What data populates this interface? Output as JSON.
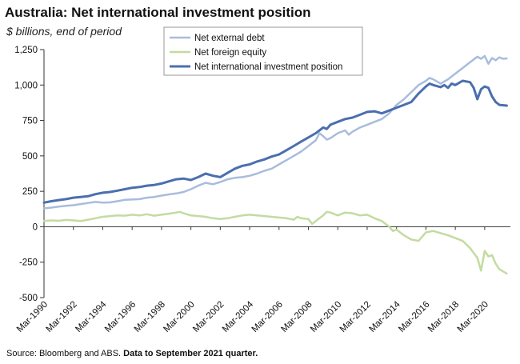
{
  "chart_data": {
    "type": "line",
    "title": "Australia: Net international investment position",
    "subtitle": "$ billions, end of period",
    "source_prefix": "Source: Bloomberg and ABS. ",
    "source_bold": "Data to September 2021 quarter.",
    "ylim": [
      -500,
      1250
    ],
    "yticks": [
      -500,
      -250,
      0,
      250,
      500,
      750,
      1000,
      1250
    ],
    "ytick_labels": [
      "-500",
      "-250",
      "0",
      "250",
      "500",
      "750",
      "1,000",
      "1,250"
    ],
    "xlim": [
      1990.0,
      2021.75
    ],
    "xticks": [
      1990,
      1992,
      1994,
      1996,
      1998,
      2000,
      2002,
      2004,
      2006,
      2008,
      2010,
      2012,
      2014,
      2016,
      2018,
      2020
    ],
    "xtick_labels": [
      "Mar-1990",
      "Mar-1992",
      "Mar-1994",
      "Mar-1996",
      "Mar-1998",
      "Mar-2000",
      "Mar-2002",
      "Mar-2004",
      "Mar-2006",
      "Mar-2008",
      "Mar-2010",
      "Mar-2012",
      "Mar-2014",
      "Mar-2016",
      "Mar-2018",
      "Mar-2020"
    ],
    "legend_position": "top-center",
    "series": [
      {
        "name": "Net external debt",
        "color": "#a9bcdc",
        "width": 2.5,
        "points": [
          [
            1990.0,
            130
          ],
          [
            1990.5,
            135
          ],
          [
            1991.0,
            142
          ],
          [
            1991.5,
            148
          ],
          [
            1992.0,
            152
          ],
          [
            1992.5,
            160
          ],
          [
            1993.0,
            168
          ],
          [
            1993.5,
            175
          ],
          [
            1994.0,
            170
          ],
          [
            1994.5,
            172
          ],
          [
            1995.0,
            180
          ],
          [
            1995.5,
            190
          ],
          [
            1996.0,
            192
          ],
          [
            1996.5,
            195
          ],
          [
            1997.0,
            205
          ],
          [
            1997.5,
            210
          ],
          [
            1998.0,
            220
          ],
          [
            1998.5,
            228
          ],
          [
            1999.0,
            235
          ],
          [
            1999.5,
            245
          ],
          [
            2000.0,
            265
          ],
          [
            2000.5,
            290
          ],
          [
            2001.0,
            310
          ],
          [
            2001.5,
            300
          ],
          [
            2002.0,
            315
          ],
          [
            2002.5,
            335
          ],
          [
            2003.0,
            345
          ],
          [
            2003.5,
            350
          ],
          [
            2004.0,
            360
          ],
          [
            2004.5,
            375
          ],
          [
            2005.0,
            395
          ],
          [
            2005.5,
            410
          ],
          [
            2006.0,
            440
          ],
          [
            2006.5,
            470
          ],
          [
            2007.0,
            500
          ],
          [
            2007.5,
            530
          ],
          [
            2008.0,
            570
          ],
          [
            2008.5,
            610
          ],
          [
            2008.75,
            660
          ],
          [
            2009.0,
            640
          ],
          [
            2009.25,
            615
          ],
          [
            2009.5,
            625
          ],
          [
            2010.0,
            660
          ],
          [
            2010.5,
            680
          ],
          [
            2010.75,
            650
          ],
          [
            2011.0,
            670
          ],
          [
            2011.5,
            700
          ],
          [
            2012.0,
            720
          ],
          [
            2012.5,
            740
          ],
          [
            2013.0,
            760
          ],
          [
            2013.5,
            800
          ],
          [
            2014.0,
            860
          ],
          [
            2014.5,
            900
          ],
          [
            2015.0,
            950
          ],
          [
            2015.5,
            1000
          ],
          [
            2016.0,
            1030
          ],
          [
            2016.25,
            1050
          ],
          [
            2016.5,
            1040
          ],
          [
            2017.0,
            1010
          ],
          [
            2017.5,
            1040
          ],
          [
            2018.0,
            1080
          ],
          [
            2018.5,
            1120
          ],
          [
            2019.0,
            1160
          ],
          [
            2019.5,
            1200
          ],
          [
            2019.75,
            1185
          ],
          [
            2020.0,
            1205
          ],
          [
            2020.25,
            1150
          ],
          [
            2020.5,
            1190
          ],
          [
            2020.75,
            1175
          ],
          [
            2021.0,
            1195
          ],
          [
            2021.25,
            1185
          ],
          [
            2021.5,
            1188
          ]
        ]
      },
      {
        "name": "Net foreign equity",
        "color": "#c3dba0",
        "width": 2.5,
        "points": [
          [
            1990.0,
            40
          ],
          [
            1990.5,
            45
          ],
          [
            1991.0,
            42
          ],
          [
            1991.5,
            48
          ],
          [
            1992.0,
            45
          ],
          [
            1992.5,
            40
          ],
          [
            1993.0,
            50
          ],
          [
            1993.5,
            60
          ],
          [
            1994.0,
            70
          ],
          [
            1994.5,
            75
          ],
          [
            1995.0,
            80
          ],
          [
            1995.5,
            78
          ],
          [
            1996.0,
            85
          ],
          [
            1996.5,
            80
          ],
          [
            1997.0,
            88
          ],
          [
            1997.5,
            78
          ],
          [
            1998.0,
            85
          ],
          [
            1998.5,
            92
          ],
          [
            1999.0,
            100
          ],
          [
            1999.25,
            105
          ],
          [
            1999.5,
            95
          ],
          [
            2000.0,
            80
          ],
          [
            2000.5,
            75
          ],
          [
            2001.0,
            70
          ],
          [
            2001.5,
            60
          ],
          [
            2002.0,
            55
          ],
          [
            2002.5,
            60
          ],
          [
            2003.0,
            70
          ],
          [
            2003.5,
            80
          ],
          [
            2004.0,
            85
          ],
          [
            2004.5,
            80
          ],
          [
            2005.0,
            75
          ],
          [
            2005.5,
            70
          ],
          [
            2006.0,
            65
          ],
          [
            2006.5,
            60
          ],
          [
            2007.0,
            50
          ],
          [
            2007.25,
            70
          ],
          [
            2007.5,
            60
          ],
          [
            2008.0,
            55
          ],
          [
            2008.25,
            20
          ],
          [
            2008.5,
            40
          ],
          [
            2009.0,
            80
          ],
          [
            2009.25,
            105
          ],
          [
            2009.5,
            100
          ],
          [
            2010.0,
            80
          ],
          [
            2010.5,
            100
          ],
          [
            2011.0,
            95
          ],
          [
            2011.5,
            80
          ],
          [
            2012.0,
            85
          ],
          [
            2012.5,
            60
          ],
          [
            2013.0,
            40
          ],
          [
            2013.5,
            0
          ],
          [
            2013.75,
            -30
          ],
          [
            2014.0,
            -20
          ],
          [
            2014.5,
            -60
          ],
          [
            2015.0,
            -90
          ],
          [
            2015.5,
            -100
          ],
          [
            2016.0,
            -40
          ],
          [
            2016.5,
            -30
          ],
          [
            2017.0,
            -45
          ],
          [
            2017.5,
            -60
          ],
          [
            2018.0,
            -80
          ],
          [
            2018.5,
            -100
          ],
          [
            2019.0,
            -150
          ],
          [
            2019.5,
            -220
          ],
          [
            2019.75,
            -310
          ],
          [
            2020.0,
            -170
          ],
          [
            2020.25,
            -210
          ],
          [
            2020.5,
            -200
          ],
          [
            2020.75,
            -260
          ],
          [
            2021.0,
            -300
          ],
          [
            2021.5,
            -330
          ]
        ]
      },
      {
        "name": "Net international investment position",
        "color": "#4a6fae",
        "width": 3,
        "points": [
          [
            1990.0,
            170
          ],
          [
            1990.5,
            180
          ],
          [
            1991.0,
            188
          ],
          [
            1991.5,
            195
          ],
          [
            1992.0,
            205
          ],
          [
            1992.5,
            210
          ],
          [
            1993.0,
            215
          ],
          [
            1993.5,
            230
          ],
          [
            1994.0,
            240
          ],
          [
            1994.5,
            245
          ],
          [
            1995.0,
            255
          ],
          [
            1995.5,
            265
          ],
          [
            1996.0,
            275
          ],
          [
            1996.5,
            280
          ],
          [
            1997.0,
            290
          ],
          [
            1997.5,
            295
          ],
          [
            1998.0,
            305
          ],
          [
            1998.5,
            320
          ],
          [
            1999.0,
            335
          ],
          [
            1999.5,
            340
          ],
          [
            2000.0,
            330
          ],
          [
            2000.5,
            350
          ],
          [
            2001.0,
            375
          ],
          [
            2001.5,
            360
          ],
          [
            2002.0,
            350
          ],
          [
            2002.5,
            380
          ],
          [
            2003.0,
            410
          ],
          [
            2003.5,
            430
          ],
          [
            2004.0,
            440
          ],
          [
            2004.5,
            460
          ],
          [
            2005.0,
            475
          ],
          [
            2005.5,
            495
          ],
          [
            2006.0,
            510
          ],
          [
            2006.5,
            540
          ],
          [
            2007.0,
            570
          ],
          [
            2007.5,
            600
          ],
          [
            2008.0,
            630
          ],
          [
            2008.5,
            660
          ],
          [
            2009.0,
            700
          ],
          [
            2009.25,
            690
          ],
          [
            2009.5,
            720
          ],
          [
            2010.0,
            740
          ],
          [
            2010.5,
            760
          ],
          [
            2011.0,
            770
          ],
          [
            2011.5,
            790
          ],
          [
            2012.0,
            810
          ],
          [
            2012.5,
            815
          ],
          [
            2013.0,
            800
          ],
          [
            2013.5,
            820
          ],
          [
            2014.0,
            840
          ],
          [
            2014.5,
            860
          ],
          [
            2015.0,
            880
          ],
          [
            2015.5,
            940
          ],
          [
            2016.0,
            990
          ],
          [
            2016.25,
            1010
          ],
          [
            2016.5,
            1000
          ],
          [
            2017.0,
            985
          ],
          [
            2017.25,
            1000
          ],
          [
            2017.5,
            980
          ],
          [
            2017.75,
            1010
          ],
          [
            2018.0,
            1000
          ],
          [
            2018.5,
            1030
          ],
          [
            2019.0,
            1020
          ],
          [
            2019.25,
            980
          ],
          [
            2019.5,
            900
          ],
          [
            2019.75,
            970
          ],
          [
            2020.0,
            990
          ],
          [
            2020.25,
            980
          ],
          [
            2020.5,
            920
          ],
          [
            2020.75,
            880
          ],
          [
            2021.0,
            860
          ],
          [
            2021.5,
            855
          ]
        ]
      }
    ]
  }
}
